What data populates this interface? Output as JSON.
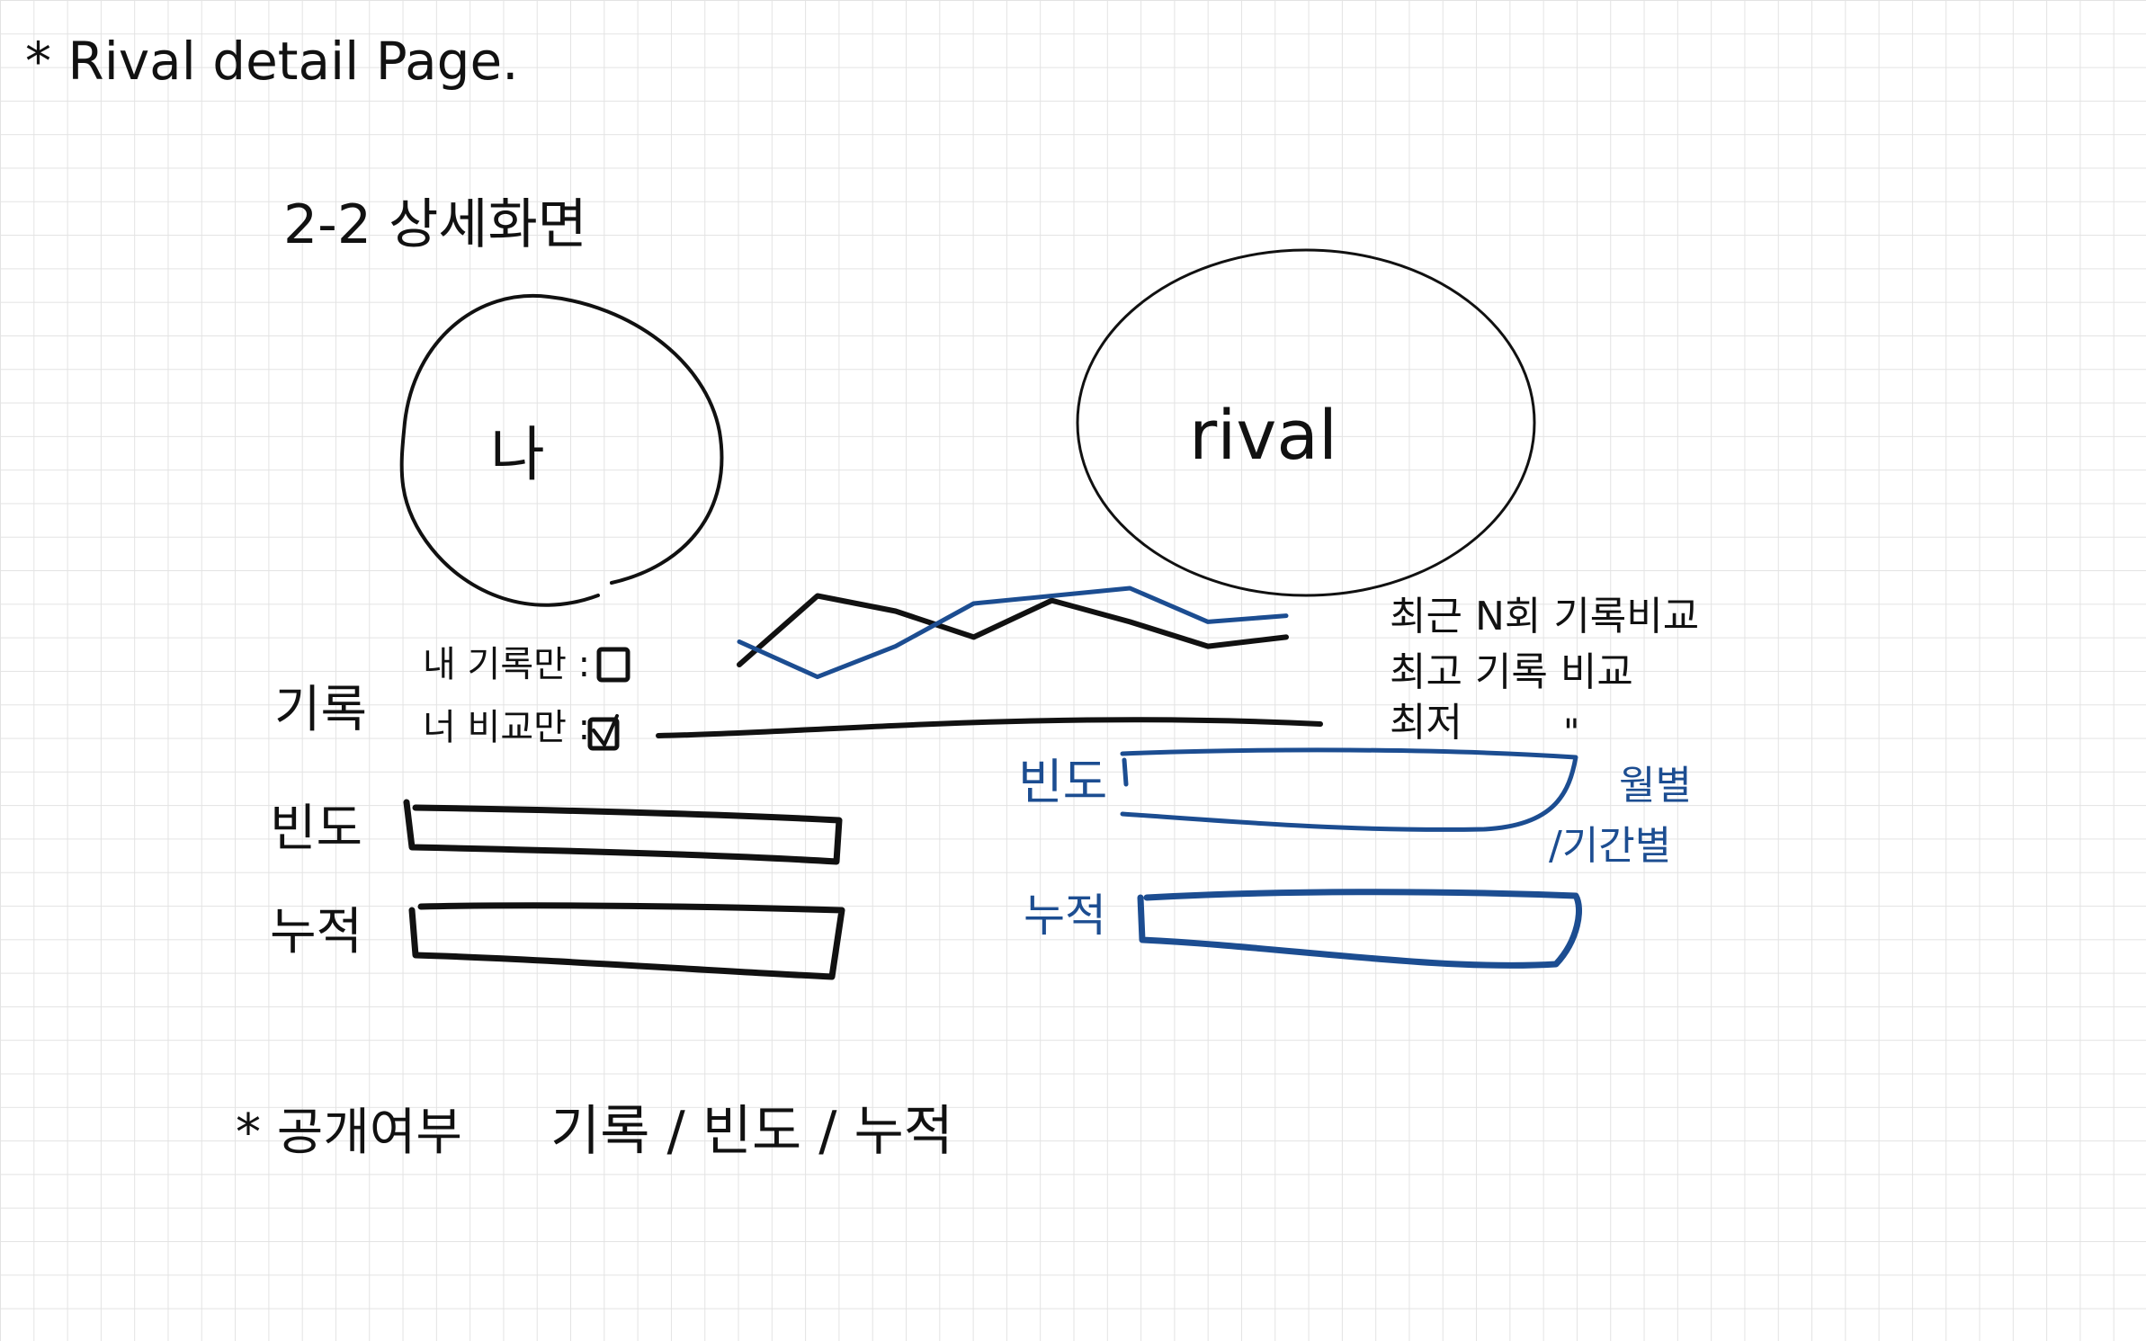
{
  "page": {
    "title": "* Rival detail Page.",
    "section_title": "2-2 상세화면"
  },
  "avatars": {
    "me_label": "나",
    "rival_label": "rival"
  },
  "record": {
    "label": "기록",
    "options": [
      {
        "label": "내 기록만 :",
        "checked": false
      },
      {
        "label": "너 비교만 :",
        "checked": true
      }
    ]
  },
  "left_bars": {
    "frequency_label": "빈도",
    "cumulative_label": "누적"
  },
  "right_bars": {
    "frequency_label": "빈도",
    "cumulative_label": "누적",
    "frequency_note_line1": "월별",
    "frequency_note_line2": "/기간별"
  },
  "chart_notes": {
    "line1": "최근 N회 기록비교",
    "line2": "최고 기록 비교",
    "line3": "최저",
    "ditto": "\""
  },
  "footer": {
    "public_label": "* 공개여부",
    "public_options": "기록 / 빈도 / 누적"
  },
  "colors": {
    "ink": "#111111",
    "blue_ink": "#1c4d91",
    "grid": "#e3e3e3"
  },
  "chart_data": {
    "type": "line",
    "title": "",
    "xlabel": "",
    "ylabel": "",
    "x": [
      1,
      2,
      3,
      4,
      5,
      6,
      7,
      8
    ],
    "series": [
      {
        "values": [
          30,
          75,
          65,
          48,
          72,
          58,
          42,
          48
        ]
      },
      {
        "values": [
          45,
          22,
          42,
          70,
          75,
          80,
          58,
          62
        ]
      }
    ],
    "ylim": [
      0,
      100
    ],
    "grid": false
  }
}
